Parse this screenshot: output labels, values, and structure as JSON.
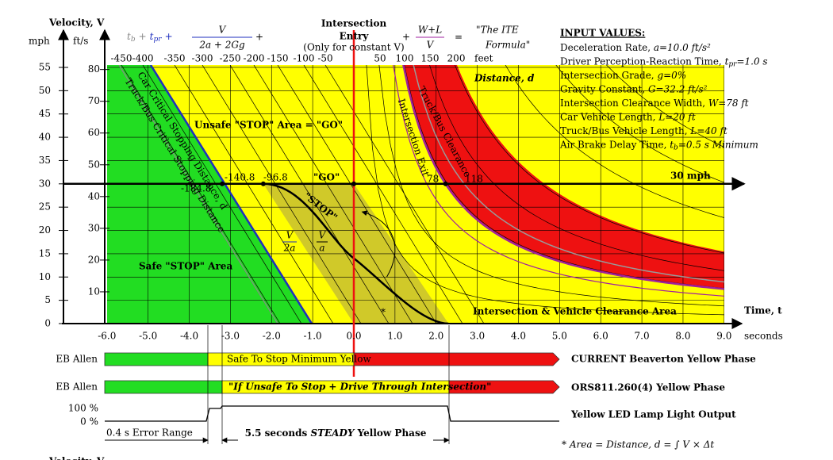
{
  "axes": {
    "velocity_label": "Velocity, V",
    "mph": "mph",
    "fts": "ft/s",
    "mph_ticks": [
      "0",
      "5",
      "10",
      "15",
      "20",
      "25",
      "30",
      "35",
      "40",
      "45",
      "50",
      "55"
    ],
    "fts_ticks": [
      "10",
      "20",
      "30",
      "40",
      "50",
      "60",
      "70",
      "80"
    ],
    "time_ticks": [
      "-6.0",
      "-5.0",
      "-4.0",
      "-3.0",
      "-2.0",
      "-1.0",
      "0.0",
      "1.0",
      "2.0",
      "3.0",
      "4.0",
      "5.0",
      "6.0",
      "7.0",
      "8.0",
      "9.0"
    ],
    "time_label": "Time, t",
    "seconds": "seconds",
    "distance_ticks": [
      "-450",
      "-400",
      "-350",
      "-300",
      "-250",
      "-200",
      "-150",
      "-100",
      "-50",
      "50",
      "100",
      "150",
      "200"
    ],
    "feet": "feet",
    "distance_label": "Distance, d"
  },
  "formula": {
    "t1": "t",
    "t1_sub": "b",
    "plus1": "+",
    "t2": "t",
    "t2_sub": "pr",
    "plus2": "+",
    "frac1_num": "V",
    "frac1_den": "2a + 2Gg",
    "plus3": "+",
    "entry_1": "Intersection",
    "entry_2": "Entry",
    "entry_note": "(Only for constant V)",
    "plus4": "+",
    "frac2_num": "W+L",
    "frac2_den": "V",
    "equals": "=",
    "ite_1": "\"The ITE",
    "ite_2": "Formula\""
  },
  "inputs": {
    "title": "INPUT VALUES:",
    "lines": [
      {
        "color": "#1f2fbf",
        "parts": [
          "Deceleration Rate, ",
          "a=10.0 ft/s²"
        ]
      },
      {
        "color": "#1f2fbf",
        "parts": [
          "Driver Perception-Reaction Time, ",
          "t",
          "pr",
          "=1.0 s"
        ]
      },
      {
        "color": "#1f2fbf",
        "parts": [
          "Intersection Grade, ",
          "g=0%"
        ]
      },
      {
        "color": "#1f2fbf",
        "parts": [
          "Gravity Constant, ",
          "G=32.2 ft/s²"
        ]
      },
      {
        "color": "#a020a0",
        "parts": [
          "Intersection Clearance Width, ",
          "W=78 ft"
        ]
      },
      {
        "color": "#a020a0",
        "parts": [
          "Car Vehicle Length, ",
          "L=20 ft"
        ]
      },
      {
        "color": "#909090",
        "parts": [
          "Truck/Bus Vehicle Length, ",
          "L=40 ft"
        ]
      },
      {
        "color": "#909090",
        "parts": [
          "Air Brake Delay Time, ",
          "t",
          "b",
          "=0.5 s Minimum"
        ]
      }
    ]
  },
  "annotations": {
    "unsafe": "Unsafe \"STOP\" Area = \"GO\"",
    "safe": "Safe \"STOP\" Area",
    "clearance": "Intersection & Vehicle Clearance Area",
    "speed": "30 mph",
    "go": "\"GO\"",
    "stop": "\"STOP\"",
    "d1": "-140.8",
    "d2": "-96.8",
    "d3": "-184.8",
    "d4": "78",
    "d5": "118",
    "car_stop": "Car Critical Stopping Distance, d",
    "truck_stop": "Truck/Bus Critical Stopping Distance",
    "truck_clear": "Truck/Bus Clearance",
    "exit": "Intersection Exit",
    "v2a_num": "V",
    "v2a_den": "2a",
    "va_num": "V",
    "va_den": "a",
    "star": "*"
  },
  "phases": {
    "row1_label": "EB Allen",
    "row1_text": "Safe To Stop Minimum Yellow",
    "row1_title": "CURRENT Beaverton Yellow Phase",
    "row2_label": "EB Allen",
    "row2_text": "\"If Unsafe To Stop + Drive Through Intersection\"",
    "row2_title": "ORS811.260(4) Yellow Phase",
    "pct100": "100 %",
    "pct0": "0 %",
    "led_title": "Yellow LED Lamp Light Output",
    "error": "0.4 s Error Range",
    "steady_1": "5.5 seconds ",
    "steady_2": "STEADY",
    "steady_3": " Yellow Phase",
    "area_eq": "* Area = Distance, d = ∫ V × Δt",
    "cut_label": "Velocity, V"
  }
}
